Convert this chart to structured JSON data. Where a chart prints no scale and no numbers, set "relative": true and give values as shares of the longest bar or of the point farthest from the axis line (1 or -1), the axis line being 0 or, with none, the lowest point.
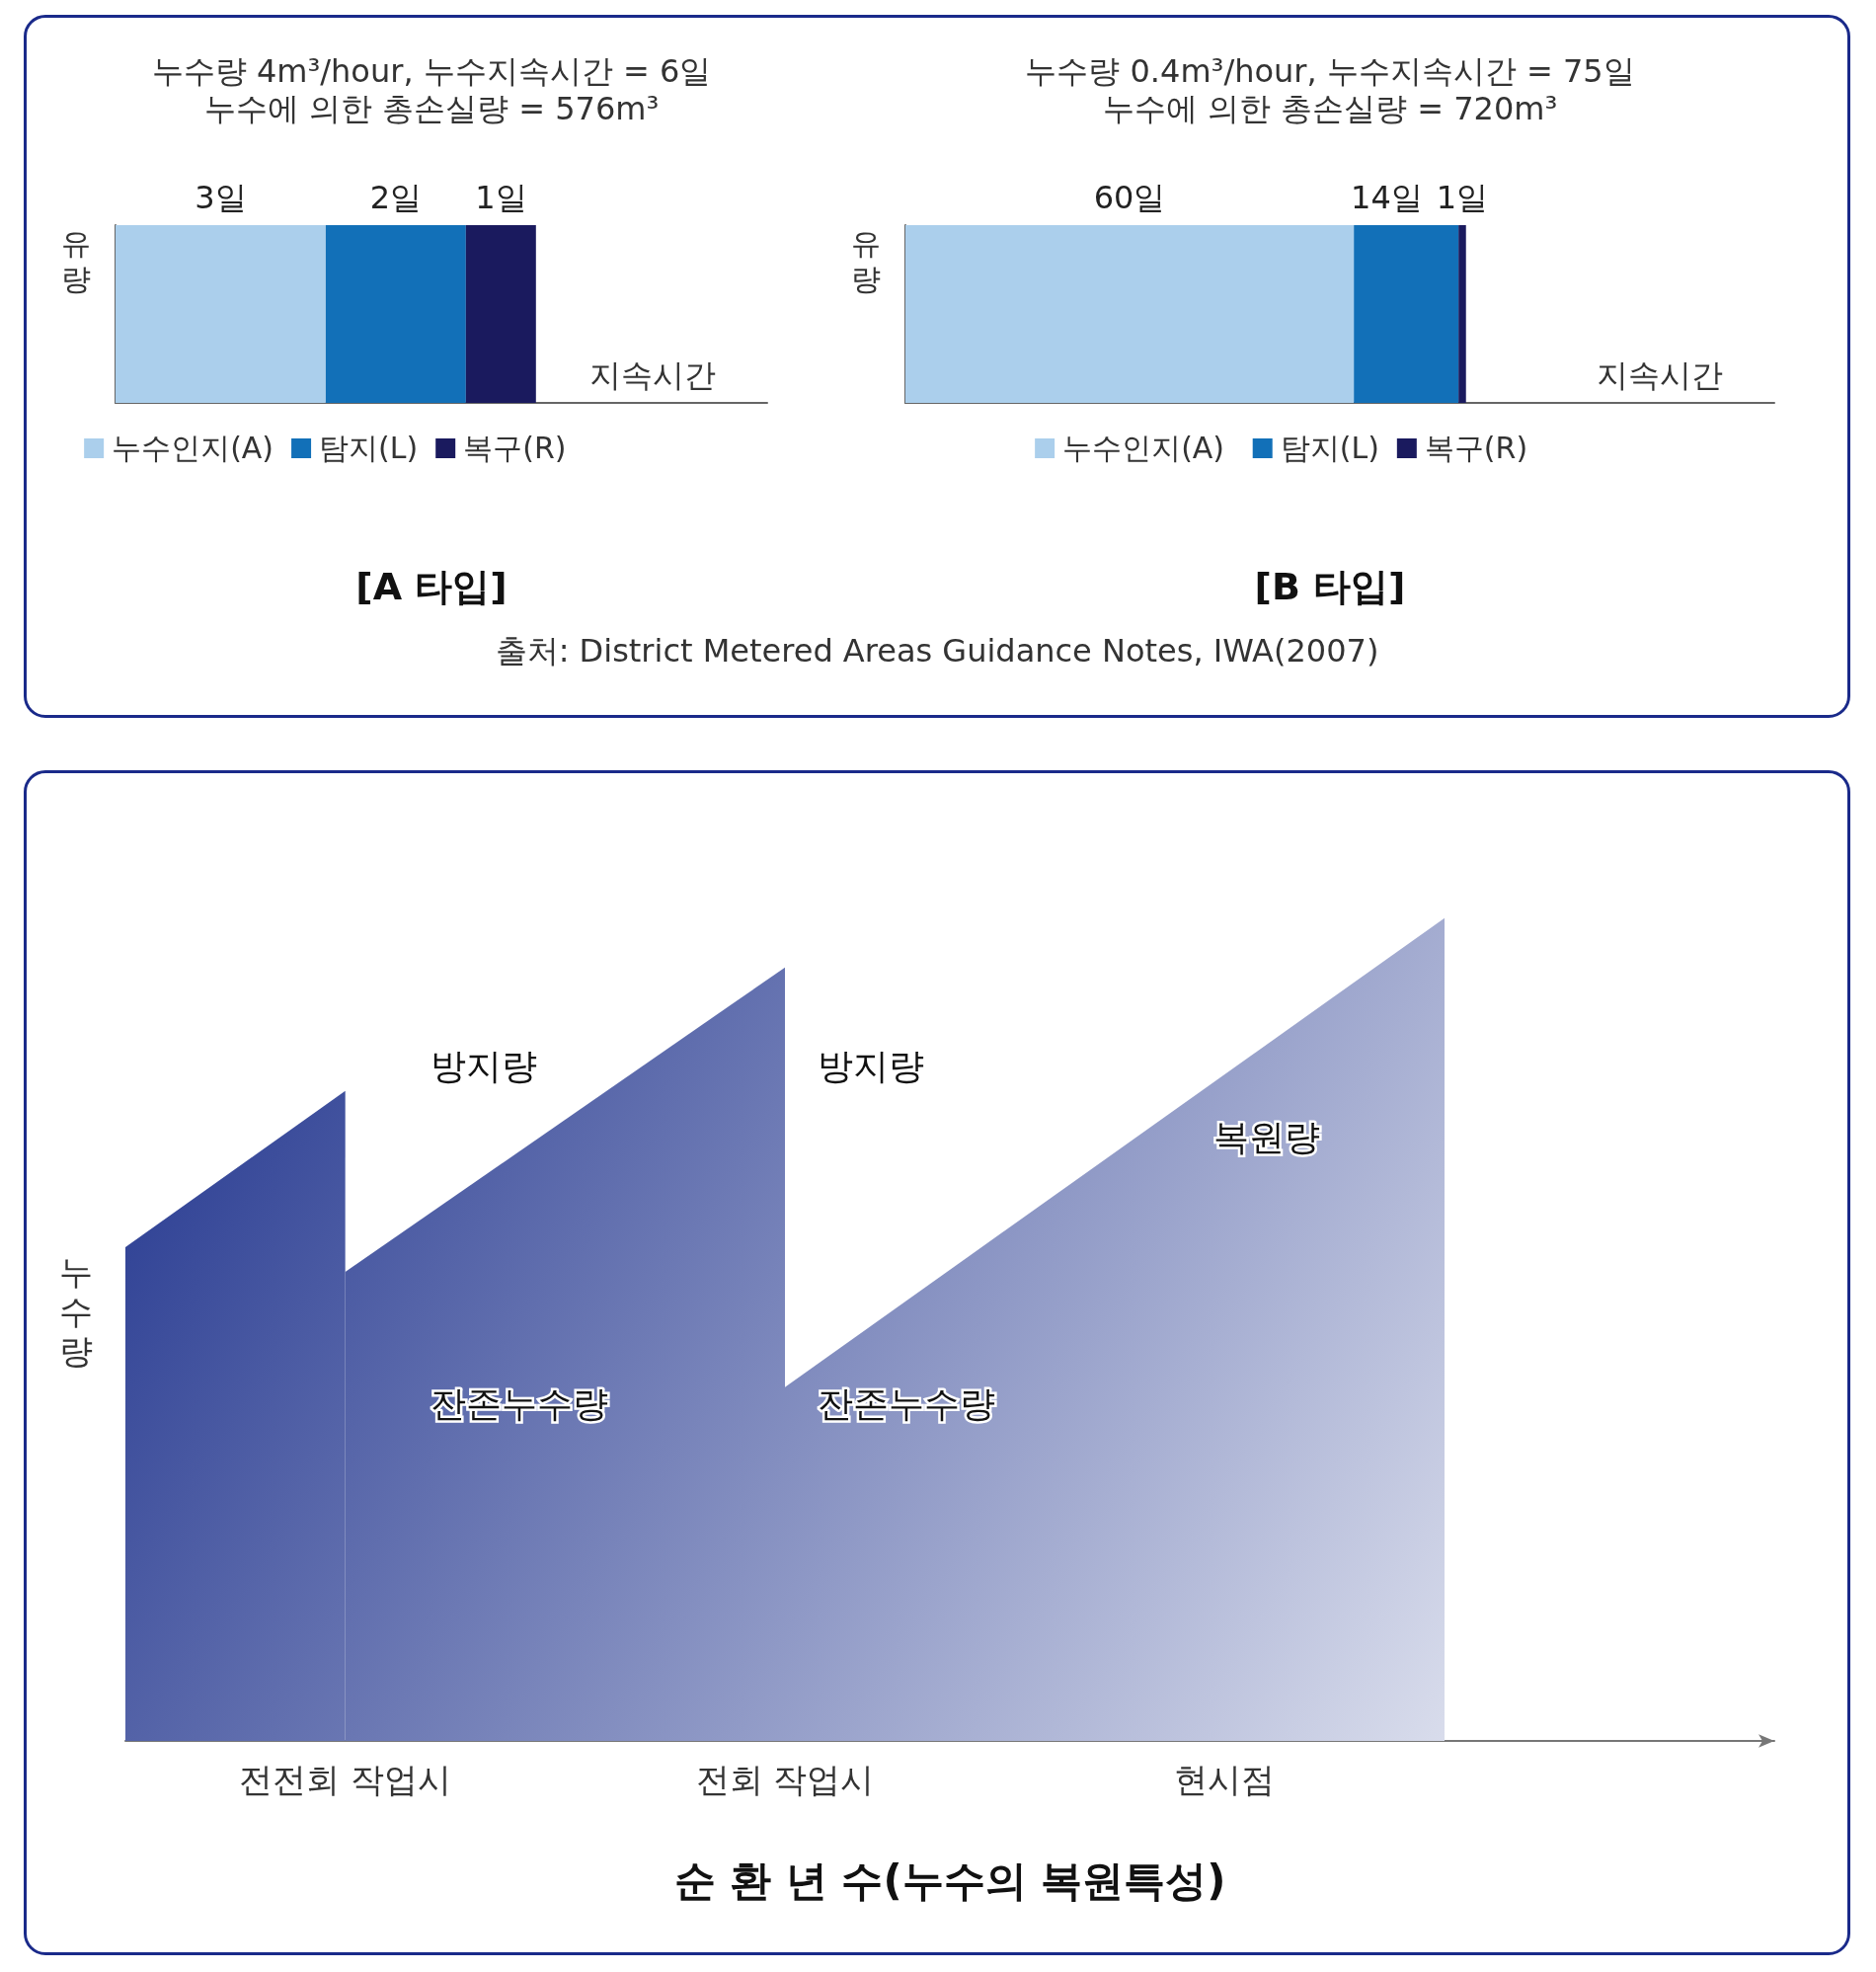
{
  "chart_data": [
    {
      "type": "bar",
      "orientation": "horizontal",
      "stacked": true,
      "title": "[A 타입]",
      "subtitle": "누수량 4m³/hour, 누수지속시간 = 6일\n누수에 의한 총손실량 = 576m³",
      "xlabel": "지속시간",
      "ylabel": "유량",
      "categories": [
        null
      ],
      "tick_labels": false,
      "grid": false,
      "legend": "bottom",
      "series": [
        {
          "name": "누수인지(A)",
          "color": "#abcfec",
          "values": [
            3
          ],
          "value_labels": [
            "3일"
          ]
        },
        {
          "name": "탐지(L)",
          "color": "#1270b8",
          "values": [
            2
          ],
          "value_labels": [
            "2일"
          ]
        },
        {
          "name": "복구(R)",
          "color": "#1a1a5e",
          "values": [
            1
          ],
          "value_labels": [
            "1일"
          ]
        }
      ]
    },
    {
      "type": "bar",
      "orientation": "horizontal",
      "stacked": true,
      "title": "[B 타입]",
      "subtitle": "누수량 0.4m³/hour, 누수지속시간 = 75일\n누수에 의한 총손실량 = 720m³",
      "xlabel": "지속시간",
      "ylabel": "유량",
      "categories": [
        null
      ],
      "tick_labels": false,
      "grid": false,
      "legend": "bottom",
      "annotations": [
        "출처: District Metered Areas Guidance Notes, IWA(2007)"
      ],
      "series": [
        {
          "name": "누수인지(A)",
          "color": "#abcfec",
          "values": [
            60
          ],
          "value_labels": [
            "60일"
          ]
        },
        {
          "name": "탐지(L)",
          "color": "#1270b8",
          "values": [
            14
          ],
          "value_labels": [
            "14일"
          ]
        },
        {
          "name": "복구(R)",
          "color": "#1a1a5e",
          "values": [
            1
          ],
          "value_labels": [
            "1일"
          ]
        }
      ]
    },
    {
      "type": "area",
      "relative": true,
      "xlabel": "순 환 년 수(누수의 복원특성)",
      "ylabel": "누수량",
      "grid": false,
      "legend": false,
      "categories": [
        null,
        null,
        "전전회 작업시",
        null,
        null,
        null,
        "전회 작업시",
        null,
        null,
        null,
        "현시점",
        null,
        null,
        null,
        null,
        null
      ],
      "annotations": [
        "방지량",
        "방지량",
        "복원량",
        "잔존누수량",
        "잔존누수량"
      ],
      "series": [
        {
          "color": "#1a2e8a",
          "values": [
            0.6,
            null,
            0.79,
            null,
            null,
            null,
            null,
            null,
            null,
            null,
            null,
            null,
            null,
            null,
            null,
            null
          ]
        },
        {
          "color": "#1a2e8a",
          "values": [
            null,
            null,
            0.57,
            null,
            null,
            null,
            0.94,
            null,
            null,
            null,
            null,
            null,
            null,
            null,
            null,
            null
          ]
        },
        {
          "color": "#1a2e8a",
          "values": [
            null,
            null,
            null,
            null,
            null,
            null,
            0.43,
            null,
            null,
            null,
            null,
            null,
            1,
            null,
            null,
            null
          ]
        }
      ]
    }
  ]
}
